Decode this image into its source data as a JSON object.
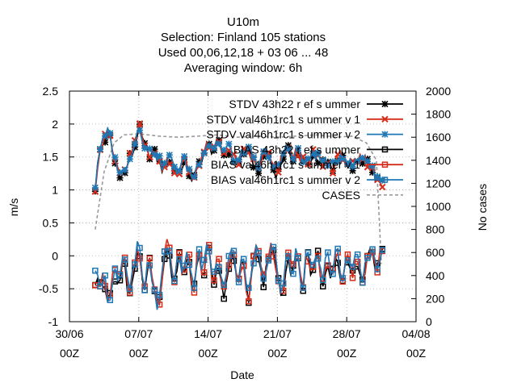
{
  "chart_data": {
    "type": "line",
    "title_lines": [
      "U10m",
      "Selection: Finland     105 stations",
      "Used  00,06,12,18  + 03 06 ... 48",
      "Averaging window:  6h"
    ],
    "xlabel": "Date",
    "ylabel": "m/s",
    "y2label": "No cases",
    "x_tick_labels": [
      [
        "30/06",
        "00Z"
      ],
      [
        "07/07",
        "00Z"
      ],
      [
        "14/07",
        "00Z"
      ],
      [
        "21/07",
        "00Z"
      ],
      [
        "28/07",
        "00Z"
      ],
      [
        "04/08",
        "00Z"
      ]
    ],
    "x_range_days": [
      0,
      35
    ],
    "ylim": [
      -1,
      2.5
    ],
    "yticks": [
      "-1",
      "-0.5",
      "0",
      "0.5",
      "1",
      "1.5",
      "2",
      "2.5"
    ],
    "y2lim": [
      0,
      2000
    ],
    "y2ticks": [
      "0",
      "200",
      "400",
      "600",
      "800",
      "1000",
      "1200",
      "1400",
      "1600",
      "1800",
      "2000"
    ],
    "grid": true,
    "legend_position": "top-right",
    "series": [
      {
        "name": "STDV 43h22 r ef s ummer",
        "color": "#000000",
        "marker": "star",
        "group": "stdv",
        "seed": 1,
        "offset": -0.02
      },
      {
        "name": "STDV val46h1rc1 s ummer v 1",
        "color": "#d62c1a",
        "marker": "cross",
        "group": "stdv",
        "seed": 2,
        "offset": 0.0
      },
      {
        "name": "STDV val46h1rc1 s ummer v 2",
        "color": "#1f77b4",
        "marker": "star",
        "group": "stdv",
        "seed": 3,
        "offset": 0.02
      },
      {
        "name": "BIAS 43h22 r ef s ummer",
        "color": "#000000",
        "marker": "square",
        "group": "bias",
        "seed": 4,
        "offset": -0.03
      },
      {
        "name": "BIAS val46h1rc1 s ummer v 1",
        "color": "#d62c1a",
        "marker": "square",
        "group": "bias",
        "seed": 5,
        "offset": 0.0
      },
      {
        "name": "BIAS val46h1rc1 s ummer v 2",
        "color": "#1f77b4",
        "marker": "square",
        "group": "bias",
        "seed": 6,
        "offset": 0.02
      },
      {
        "name": "CASES",
        "color": "#999999",
        "marker": "none",
        "group": "cases",
        "axis": "y2"
      }
    ],
    "stdv_key_values": [
      [
        2.6,
        1.05
      ],
      [
        3.0,
        1.6
      ],
      [
        3.5,
        1.75
      ],
      [
        4.0,
        1.9
      ],
      [
        4.5,
        1.45
      ],
      [
        5.0,
        1.3
      ],
      [
        5.5,
        1.2
      ],
      [
        6.0,
        1.5
      ],
      [
        6.5,
        1.6
      ],
      [
        7.0,
        2.0
      ],
      [
        7.5,
        1.7
      ],
      [
        8.0,
        1.55
      ],
      [
        8.5,
        1.6
      ],
      [
        9.0,
        1.45
      ],
      [
        9.5,
        1.3
      ],
      [
        10.0,
        1.5
      ],
      [
        10.5,
        1.35
      ],
      [
        11.0,
        1.25
      ],
      [
        11.5,
        1.45
      ],
      [
        12.0,
        1.3
      ],
      [
        12.5,
        1.15
      ],
      [
        13.0,
        1.4
      ],
      [
        13.5,
        1.55
      ],
      [
        14.0,
        1.7
      ],
      [
        14.5,
        1.6
      ],
      [
        15.0,
        1.75
      ],
      [
        15.5,
        1.55
      ],
      [
        16.0,
        1.65
      ],
      [
        16.5,
        1.5
      ],
      [
        17.0,
        1.4
      ],
      [
        17.5,
        1.55
      ],
      [
        18.0,
        1.6
      ],
      [
        18.5,
        1.45
      ],
      [
        19.0,
        1.3
      ],
      [
        19.5,
        1.5
      ],
      [
        20.0,
        1.6
      ],
      [
        20.5,
        1.35
      ],
      [
        21.0,
        1.25
      ],
      [
        21.5,
        1.5
      ],
      [
        22.0,
        1.65
      ],
      [
        22.5,
        1.5
      ],
      [
        23.0,
        1.6
      ],
      [
        23.5,
        1.45
      ],
      [
        24.0,
        1.35
      ],
      [
        24.5,
        1.55
      ],
      [
        25.0,
        1.5
      ],
      [
        25.5,
        1.4
      ],
      [
        26.0,
        1.45
      ],
      [
        26.5,
        1.3
      ],
      [
        27.0,
        1.45
      ],
      [
        27.5,
        1.55
      ],
      [
        28.0,
        1.45
      ],
      [
        28.5,
        1.35
      ],
      [
        29.0,
        1.4
      ],
      [
        29.5,
        1.5
      ],
      [
        30.0,
        1.45
      ],
      [
        30.5,
        1.3
      ],
      [
        31.0,
        1.2
      ],
      [
        31.5,
        1.1
      ]
    ],
    "bias_key_values": [
      [
        2.6,
        -0.35
      ],
      [
        3.0,
        -0.4
      ],
      [
        3.5,
        -0.3
      ],
      [
        4.0,
        -0.75
      ],
      [
        4.5,
        -0.2
      ],
      [
        5.0,
        -0.45
      ],
      [
        5.5,
        0.0
      ],
      [
        6.0,
        -0.6
      ],
      [
        6.5,
        -0.2
      ],
      [
        7.0,
        0.25
      ],
      [
        7.5,
        -0.7
      ],
      [
        8.0,
        0.0
      ],
      [
        8.5,
        -0.5
      ],
      [
        9.0,
        -0.85
      ],
      [
        9.5,
        -0.1
      ],
      [
        10.0,
        0.25
      ],
      [
        10.5,
        -0.55
      ],
      [
        11.0,
        0.1
      ],
      [
        11.5,
        -0.35
      ],
      [
        12.0,
        0.05
      ],
      [
        12.5,
        -0.6
      ],
      [
        13.0,
        0.1
      ],
      [
        13.5,
        -0.3
      ],
      [
        14.0,
        0.25
      ],
      [
        14.5,
        -0.45
      ],
      [
        15.0,
        0.0
      ],
      [
        15.5,
        -0.6
      ],
      [
        16.0,
        -0.2
      ],
      [
        16.5,
        0.2
      ],
      [
        17.0,
        -0.5
      ],
      [
        17.5,
        0.05
      ],
      [
        18.0,
        -0.7
      ],
      [
        18.5,
        -0.1
      ],
      [
        19.0,
        0.15
      ],
      [
        19.5,
        -0.45
      ],
      [
        20.0,
        -0.1
      ],
      [
        20.5,
        0.2
      ],
      [
        21.0,
        -0.3
      ],
      [
        21.5,
        -0.6
      ],
      [
        22.0,
        0.05
      ],
      [
        22.5,
        -0.3
      ],
      [
        23.0,
        0.2
      ],
      [
        23.5,
        -0.55
      ],
      [
        24.0,
        0.1
      ],
      [
        24.5,
        -0.35
      ],
      [
        25.0,
        0.15
      ],
      [
        25.5,
        -0.5
      ],
      [
        26.0,
        0.0
      ],
      [
        26.5,
        -0.3
      ],
      [
        27.0,
        0.15
      ],
      [
        27.5,
        -0.55
      ],
      [
        28.0,
        0.1
      ],
      [
        28.5,
        -0.35
      ],
      [
        29.0,
        0.05
      ],
      [
        29.5,
        -0.4
      ],
      [
        30.0,
        -0.1
      ],
      [
        30.5,
        0.1
      ],
      [
        31.0,
        -0.25
      ],
      [
        31.5,
        0.15
      ]
    ],
    "cases_values": [
      [
        2.6,
        800
      ],
      [
        3.5,
        1300
      ],
      [
        4.5,
        1550
      ],
      [
        5.5,
        1620
      ],
      [
        7.0,
        1630
      ],
      [
        9.0,
        1610
      ],
      [
        11.0,
        1600
      ],
      [
        13.0,
        1610
      ],
      [
        15.0,
        1620
      ],
      [
        17.0,
        1600
      ],
      [
        19.0,
        1610
      ],
      [
        21.0,
        1600
      ],
      [
        23.0,
        1610
      ],
      [
        25.0,
        1620
      ],
      [
        27.0,
        1600
      ],
      [
        28.5,
        1610
      ],
      [
        30.0,
        1550
      ],
      [
        31.0,
        1400
      ],
      [
        31.5,
        500
      ]
    ]
  }
}
